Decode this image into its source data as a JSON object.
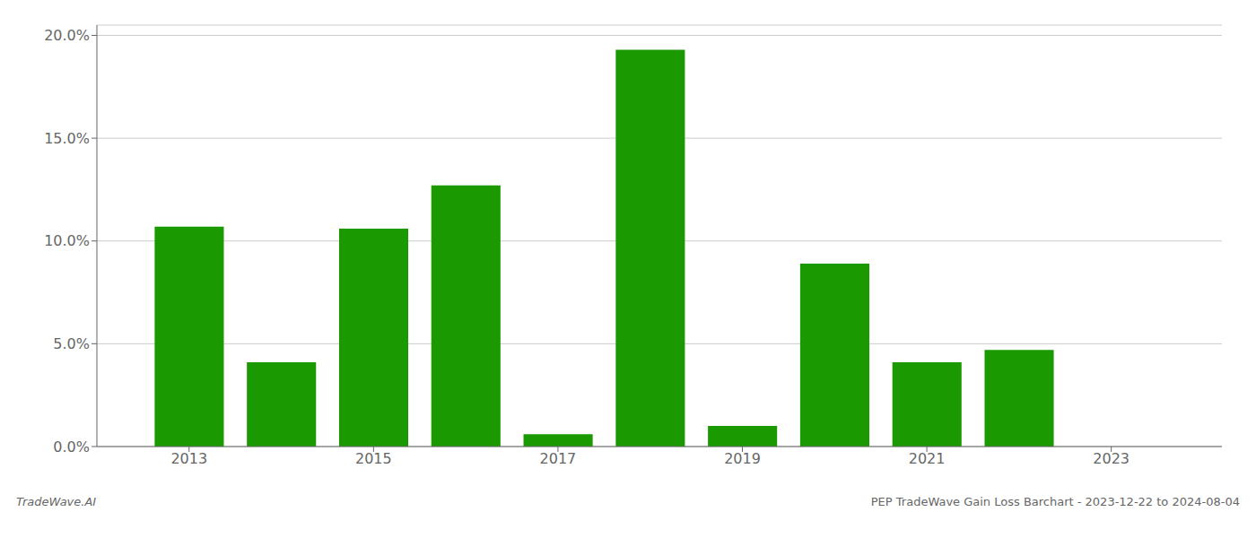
{
  "chart_data": {
    "type": "bar",
    "x": [
      2013,
      2014,
      2015,
      2016,
      2017,
      2018,
      2019,
      2020,
      2021,
      2022,
      2023
    ],
    "values": [
      0.107,
      0.041,
      0.106,
      0.127,
      0.006,
      0.193,
      0.01,
      0.089,
      0.041,
      0.047,
      0.0
    ],
    "color": "#1a9a00",
    "xlim": [
      2012.0,
      2024.2
    ],
    "xticks": [
      2013,
      2015,
      2017,
      2019,
      2021,
      2023
    ],
    "ylim": [
      0,
      0.205
    ],
    "yticks": [
      {
        "value": 0.0,
        "label": "0.0%"
      },
      {
        "value": 0.05,
        "label": "5.0%"
      },
      {
        "value": 0.1,
        "label": "10.0%"
      },
      {
        "value": 0.15,
        "label": "15.0%"
      },
      {
        "value": 0.2,
        "label": "20.0%"
      }
    ],
    "grid": true,
    "annotations": [
      "TradeWave.AI",
      "PEP TradeWave Gain Loss Barchart - 2023-12-22 to 2024-08-04"
    ]
  }
}
